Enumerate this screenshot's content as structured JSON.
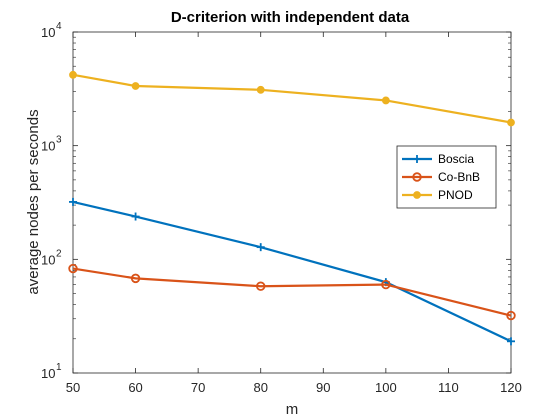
{
  "chart_data": {
    "type": "line",
    "title": "D-criterion with independent data",
    "xlabel": "m",
    "ylabel": "average nodes per seconds",
    "yscale": "log",
    "xlim": [
      50,
      120
    ],
    "ylim": [
      10,
      10000
    ],
    "x_ticks": [
      "50",
      "60",
      "70",
      "80",
      "90",
      "100",
      "110",
      "120"
    ],
    "y_ticks": [
      {
        "base": "10",
        "exp": "1",
        "value": 10
      },
      {
        "base": "10",
        "exp": "2",
        "value": 100
      },
      {
        "base": "10",
        "exp": "3",
        "value": 1000
      },
      {
        "base": "10",
        "exp": "4",
        "value": 10000
      }
    ],
    "grid": false,
    "legend_position": "right",
    "x": [
      50,
      60,
      80,
      100,
      120
    ],
    "series": [
      {
        "name": "Boscia",
        "color": "#0072BD",
        "marker": "plus",
        "values": [
          320,
          238,
          128,
          63,
          19
        ]
      },
      {
        "name": "Co-BnB",
        "color": "#D95319",
        "marker": "circle",
        "values": [
          83,
          68,
          58,
          60,
          32
        ]
      },
      {
        "name": "PNOD",
        "color": "#EDB120",
        "marker": "dot",
        "values": [
          4200,
          3350,
          3100,
          2500,
          1600
        ]
      }
    ]
  }
}
